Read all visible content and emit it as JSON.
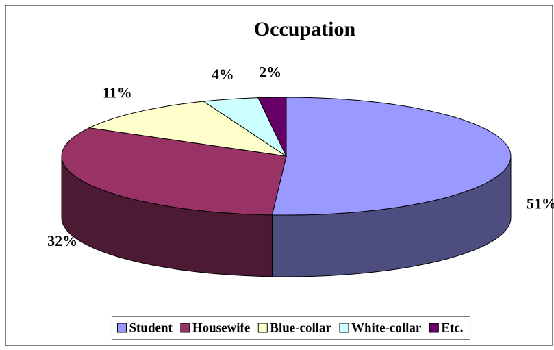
{
  "chart_data": {
    "type": "pie",
    "title": "Occupation",
    "categories": [
      "Student",
      "Housewife",
      "Blue-collar",
      "White-collar",
      "Etc."
    ],
    "values": [
      51,
      32,
      11,
      4,
      2
    ],
    "value_labels": [
      "51%",
      "32%",
      "11%",
      "4%",
      "2%"
    ],
    "colors": [
      "#9999FF",
      "#993366",
      "#FFFFCC",
      "#CCFFFF",
      "#660066"
    ],
    "legend": "bottom"
  }
}
